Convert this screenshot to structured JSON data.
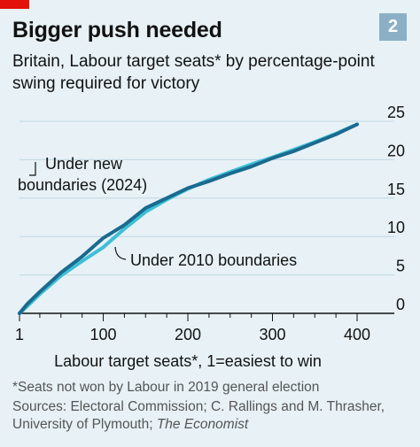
{
  "header": {
    "title": "Bigger push needed",
    "subtitle": "Britain, Labour target seats* by percentage-point swing required for victory",
    "chart_number": "2"
  },
  "footer": {
    "footnote": "*Seats not won by Labour in 2019 general election",
    "sources_prefix": "Sources: Electoral Commission; C. Rallings and M. Thrasher, University of Plymouth; ",
    "sources_publication": "The Economist"
  },
  "colors": {
    "background": "#e7f1f6",
    "accent_red": "#e3120b",
    "series_2024": "#1a6a8f",
    "series_2010": "#3ebfd6",
    "grid": "#c0d6e2",
    "axis": "#121212"
  },
  "chart_data": {
    "type": "line",
    "title": "Bigger push needed",
    "xlabel": "Labour target seats*, 1=easiest to win",
    "ylabel": "",
    "xlim": [
      1,
      400
    ],
    "ylim": [
      0,
      25
    ],
    "x_ticks": [
      1,
      100,
      200,
      300,
      400
    ],
    "x_minor_step": 25,
    "y_ticks": [
      0,
      5,
      10,
      15,
      20,
      25
    ],
    "y_axis_side": "right",
    "grid": true,
    "legend": "inline annotations",
    "series": [
      {
        "name": "Under new boundaries (2024)",
        "annotation_lines": [
          "Under new",
          "boundaries (2024)"
        ],
        "x": [
          1,
          10,
          25,
          50,
          75,
          100,
          125,
          150,
          175,
          200,
          225,
          250,
          275,
          300,
          325,
          350,
          375,
          400
        ],
        "y": [
          0,
          1.2,
          2.8,
          5.3,
          7.4,
          9.8,
          11.5,
          13.7,
          15.0,
          16.3,
          17.2,
          18.2,
          19.1,
          20.2,
          21.1,
          22.2,
          23.3,
          24.6
        ]
      },
      {
        "name": "Under 2010 boundaries",
        "annotation_lines": [
          "Under 2010 boundaries"
        ],
        "x": [
          1,
          10,
          25,
          50,
          75,
          100,
          125,
          150,
          175,
          200,
          225,
          250,
          275,
          300,
          325,
          350,
          375,
          400
        ],
        "y": [
          0,
          0.9,
          2.5,
          4.9,
          6.8,
          8.6,
          11.0,
          13.2,
          14.8,
          16.2,
          17.4,
          18.4,
          19.4,
          20.3,
          21.3,
          22.3,
          23.4,
          24.6
        ]
      }
    ]
  }
}
